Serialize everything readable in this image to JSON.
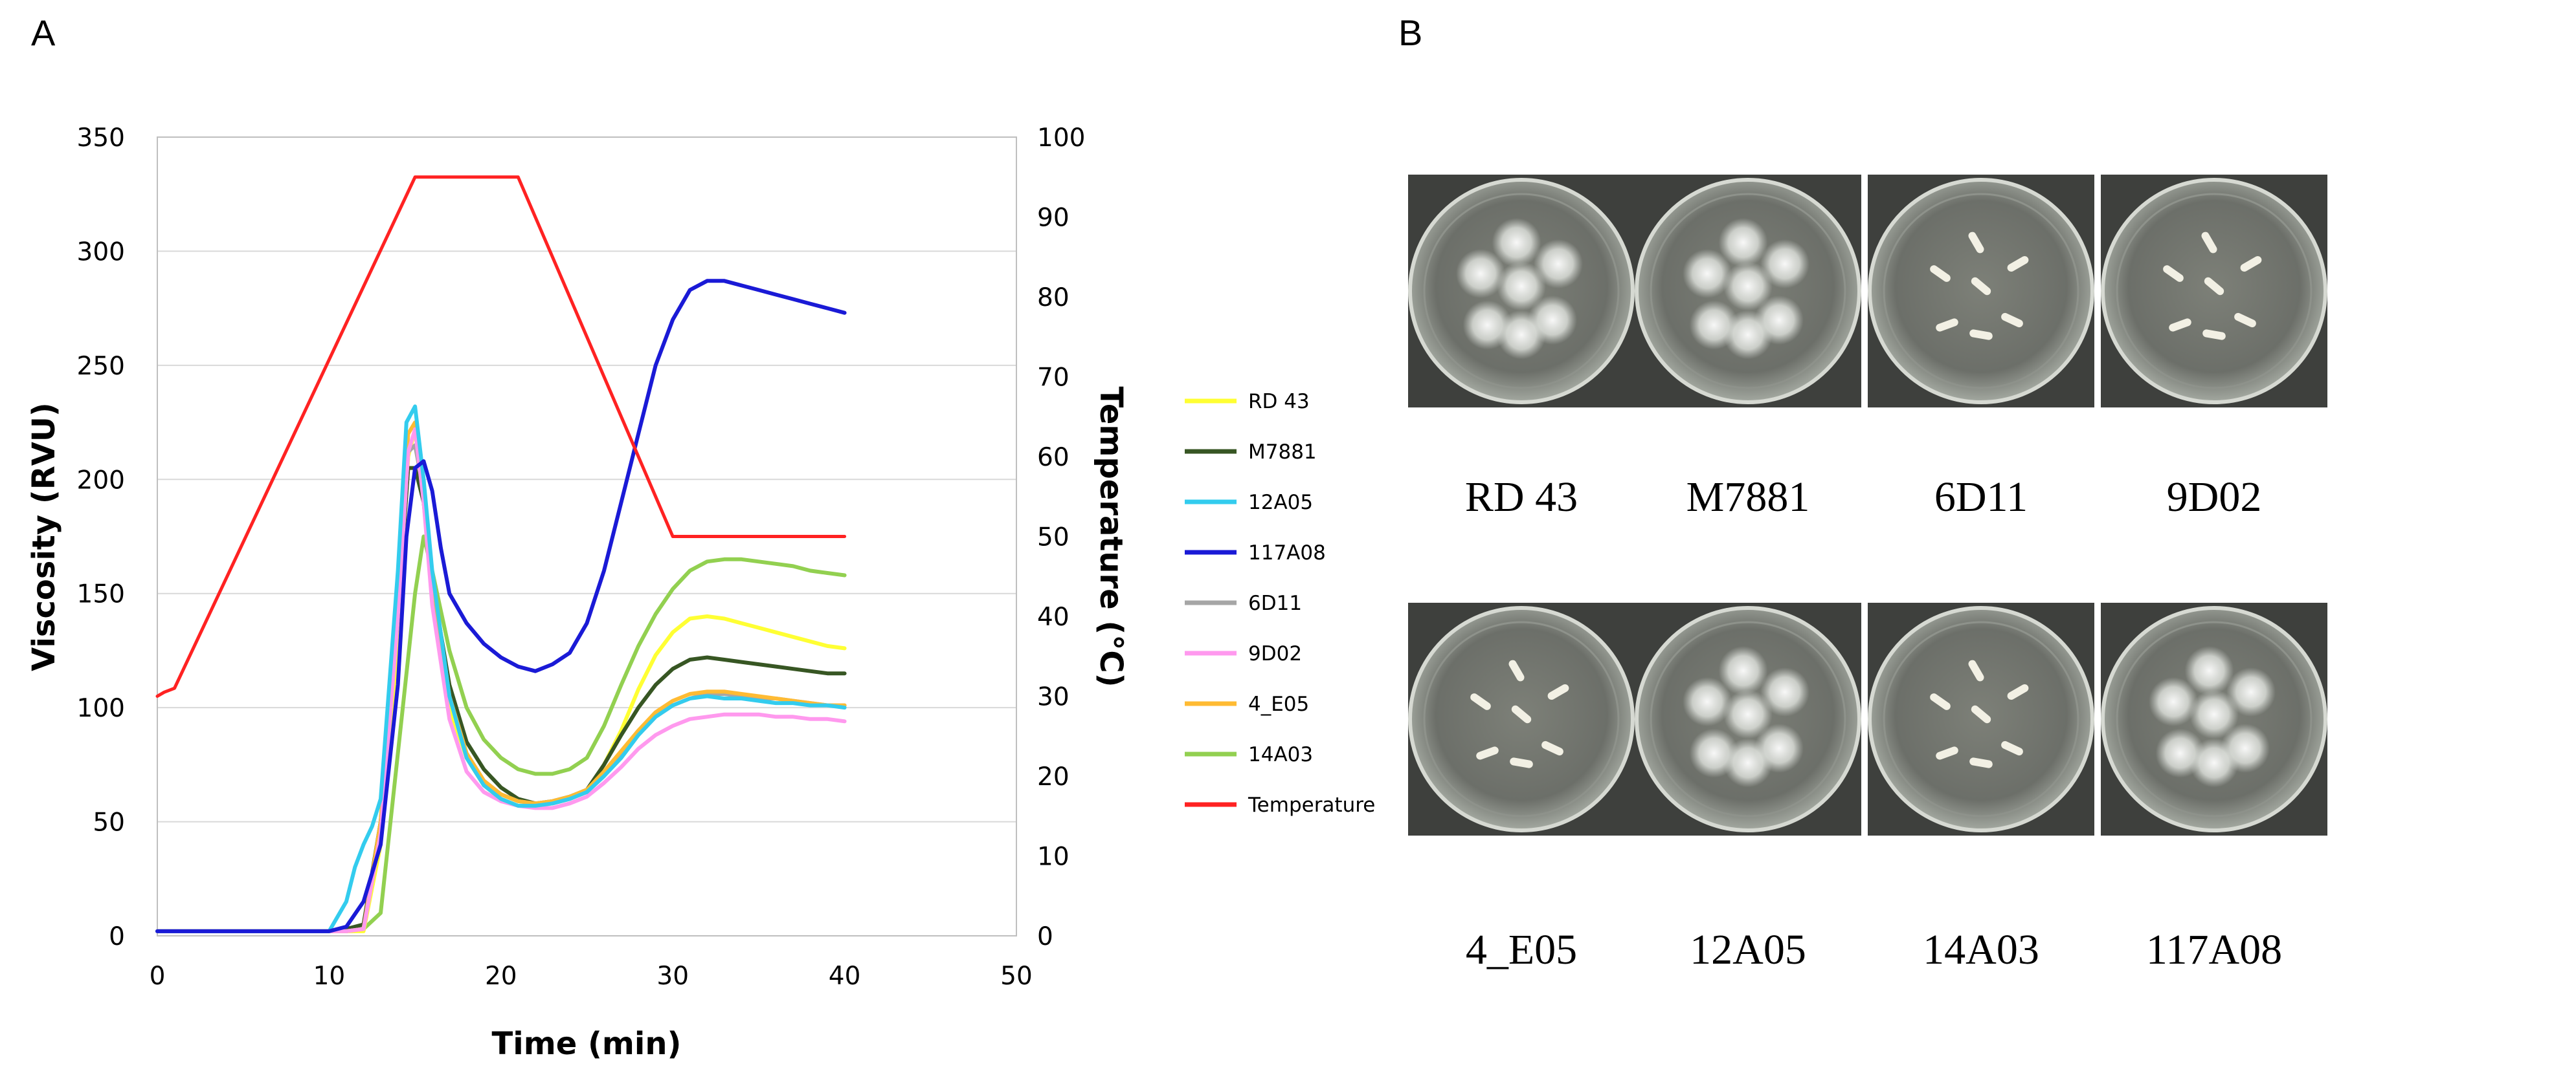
{
  "panels": {
    "a": "A",
    "b": "B"
  },
  "chart_data": {
    "type": "line",
    "title": "",
    "xlabel": "Time (min)",
    "ylabel": "Viscosity (RVU)",
    "y2label": "Temperature (°C)",
    "xlim": [
      0,
      50
    ],
    "ylim": [
      0,
      350
    ],
    "y2lim": [
      0,
      100
    ],
    "xticks": [
      0,
      10,
      20,
      30,
      40,
      50
    ],
    "yticks": [
      0,
      50,
      100,
      150,
      200,
      250,
      300,
      350
    ],
    "y2ticks": [
      0,
      10,
      20,
      30,
      40,
      50,
      60,
      70,
      80,
      90,
      100
    ],
    "grid": true,
    "legend_position": "right",
    "series": [
      {
        "name": "RD 43",
        "axis": "left",
        "color": "#ffff33",
        "x": [
          0,
          10,
          11,
          12,
          13,
          14,
          14.6,
          15,
          15.5,
          16,
          17,
          18,
          19,
          20,
          21,
          22,
          23,
          24,
          25,
          26,
          27,
          28,
          29,
          30,
          31,
          32,
          33,
          34,
          35,
          36,
          37,
          38,
          39,
          40
        ],
        "y": [
          2,
          2,
          2,
          2,
          40,
          130,
          210,
          222,
          190,
          150,
          100,
          78,
          66,
          60,
          57,
          57,
          58,
          60,
          63,
          75,
          90,
          108,
          123,
          133,
          139,
          140,
          139,
          137,
          135,
          133,
          131,
          129,
          127,
          126
        ]
      },
      {
        "name": "M7881",
        "axis": "left",
        "color": "#375623",
        "x": [
          0,
          10,
          11,
          12,
          13,
          14,
          14.6,
          15,
          15.5,
          16,
          17,
          18,
          19,
          20,
          21,
          22,
          23,
          24,
          25,
          26,
          27,
          28,
          29,
          30,
          31,
          32,
          33,
          34,
          35,
          36,
          37,
          38,
          39,
          40
        ],
        "y": [
          2,
          2,
          3,
          5,
          50,
          140,
          205,
          205,
          190,
          155,
          110,
          85,
          73,
          65,
          60,
          58,
          59,
          61,
          64,
          75,
          88,
          100,
          110,
          117,
          121,
          122,
          121,
          120,
          119,
          118,
          117,
          116,
          115,
          115
        ]
      },
      {
        "name": "12A05",
        "axis": "left",
        "color": "#33ccee",
        "x": [
          0,
          10,
          11,
          11.5,
          12,
          12.5,
          13,
          14,
          14.5,
          15,
          15.5,
          16,
          17,
          18,
          19,
          20,
          21,
          22,
          23,
          24,
          25,
          26,
          27,
          28,
          29,
          30,
          31,
          32,
          33,
          34,
          35,
          36,
          37,
          38,
          39,
          40
        ],
        "y": [
          2,
          2,
          15,
          30,
          40,
          48,
          60,
          160,
          225,
          232,
          200,
          160,
          105,
          78,
          66,
          60,
          57,
          57,
          58,
          60,
          63,
          70,
          78,
          88,
          96,
          101,
          104,
          105,
          104,
          104,
          103,
          102,
          102,
          101,
          101,
          100
        ]
      },
      {
        "name": "117A08",
        "axis": "left",
        "color": "#1a1ad6",
        "x": [
          0,
          10,
          11,
          12,
          13,
          14,
          14.5,
          15,
          15.5,
          16,
          16.5,
          17,
          18,
          19,
          20,
          21,
          22,
          23,
          24,
          25,
          26,
          27,
          28,
          29,
          30,
          31,
          32,
          33,
          34,
          35,
          36,
          37,
          38,
          39,
          40
        ],
        "y": [
          2,
          2,
          4,
          15,
          40,
          110,
          175,
          205,
          208,
          195,
          170,
          150,
          137,
          128,
          122,
          118,
          116,
          119,
          124,
          137,
          160,
          190,
          220,
          250,
          270,
          283,
          287,
          287,
          285,
          283,
          281,
          279,
          277,
          275,
          273
        ]
      },
      {
        "name": "6D11",
        "axis": "left",
        "color": "#a6a6a6",
        "x": [
          0,
          10,
          11,
          12,
          13,
          14,
          14.6,
          15,
          15.5,
          16,
          17,
          18,
          19,
          20,
          21,
          22,
          23,
          24,
          25,
          26,
          27,
          28,
          29,
          30,
          31,
          32,
          33,
          34,
          35,
          36,
          37,
          38,
          39,
          40
        ],
        "y": [
          2,
          2,
          2,
          3,
          45,
          140,
          212,
          215,
          195,
          155,
          105,
          80,
          68,
          62,
          59,
          58,
          58,
          60,
          63,
          70,
          79,
          88,
          96,
          101,
          104,
          106,
          106,
          105,
          104,
          104,
          103,
          102,
          101,
          101
        ]
      },
      {
        "name": "9D02",
        "axis": "left",
        "color": "#ff99ee",
        "x": [
          0,
          10,
          11,
          12,
          13,
          14,
          14.6,
          15,
          15.5,
          16,
          17,
          18,
          19,
          20,
          21,
          22,
          23,
          24,
          25,
          26,
          27,
          28,
          29,
          30,
          31,
          32,
          33,
          34,
          35,
          36,
          37,
          38,
          39,
          40
        ],
        "y": [
          2,
          2,
          2,
          3,
          45,
          140,
          212,
          222,
          190,
          145,
          95,
          72,
          63,
          59,
          57,
          56,
          56,
          58,
          61,
          67,
          74,
          82,
          88,
          92,
          95,
          96,
          97,
          97,
          97,
          96,
          96,
          95,
          95,
          94
        ]
      },
      {
        "name": "4_E05",
        "axis": "left",
        "color": "#ffbb33",
        "x": [
          0,
          10,
          11,
          12,
          13,
          14,
          14.6,
          15,
          15.5,
          16,
          17,
          18,
          19,
          20,
          21,
          22,
          23,
          24,
          25,
          26,
          27,
          28,
          29,
          30,
          31,
          32,
          33,
          34,
          35,
          36,
          37,
          38,
          39,
          40
        ],
        "y": [
          2,
          2,
          2,
          3,
          50,
          150,
          220,
          225,
          198,
          158,
          105,
          80,
          68,
          62,
          59,
          58,
          59,
          61,
          64,
          72,
          81,
          90,
          98,
          103,
          106,
          107,
          107,
          106,
          105,
          104,
          103,
          102,
          101,
          101
        ]
      },
      {
        "name": "14A03",
        "axis": "left",
        "color": "#92d050",
        "x": [
          0,
          10,
          11,
          12,
          13,
          14,
          15,
          15.5,
          16,
          17,
          18,
          19,
          20,
          21,
          22,
          23,
          24,
          25,
          26,
          27,
          28,
          29,
          30,
          31,
          32,
          33,
          34,
          35,
          36,
          37,
          38,
          39,
          40
        ],
        "y": [
          2,
          2,
          2,
          3,
          10,
          80,
          150,
          175,
          160,
          125,
          100,
          86,
          78,
          73,
          71,
          71,
          73,
          78,
          92,
          110,
          127,
          141,
          152,
          160,
          164,
          165,
          165,
          164,
          163,
          162,
          160,
          159,
          158
        ]
      },
      {
        "name": "Temperature",
        "axis": "right",
        "color": "#ff2222",
        "x": [
          0,
          0.4,
          1,
          15,
          21,
          30,
          40
        ],
        "y": [
          30,
          30.5,
          31,
          95,
          95,
          50,
          50
        ]
      }
    ]
  },
  "plates": {
    "items": [
      {
        "label": "RD 43",
        "fungal": true
      },
      {
        "label": "M7881",
        "fungal": true
      },
      {
        "label": "6D11",
        "fungal": false
      },
      {
        "label": "9D02",
        "fungal": false
      },
      {
        "label": "4_E05",
        "fungal": false
      },
      {
        "label": "12A05",
        "fungal": true
      },
      {
        "label": "14A03",
        "fungal": false
      },
      {
        "label": "117A08",
        "fungal": true
      }
    ]
  }
}
